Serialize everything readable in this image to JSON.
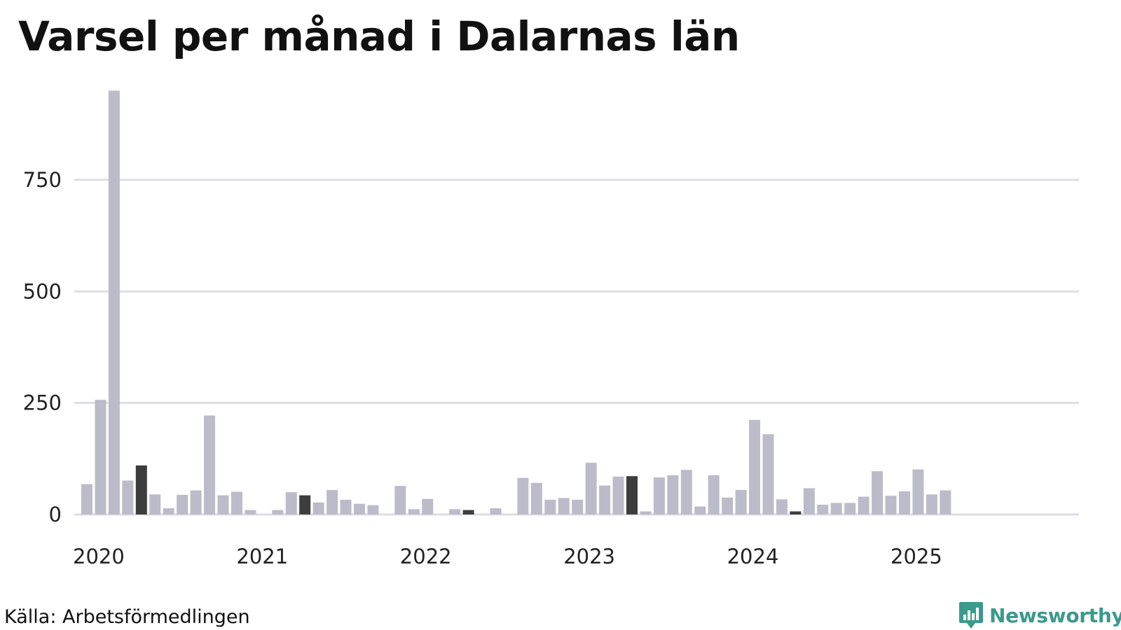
{
  "chart_data": {
    "type": "bar",
    "title": "Varsel per månad i Dalarnas län",
    "xlabel": "",
    "ylabel": "",
    "ylim": [
      0,
      950
    ],
    "y_ticks": [
      0,
      250,
      500,
      750
    ],
    "x_tick_labels": [
      "2020",
      "2021",
      "2022",
      "2023",
      "2024",
      "2025"
    ],
    "grid": true,
    "x_start": "2020-01",
    "x_end": "2025-12",
    "values": [
      68,
      257,
      950,
      76,
      110,
      45,
      14,
      44,
      54,
      222,
      43,
      51,
      10,
      0,
      10,
      50,
      43,
      27,
      55,
      33,
      24,
      21,
      0,
      64,
      12,
      35,
      0,
      12,
      10,
      0,
      14,
      0,
      82,
      71,
      33,
      37,
      33,
      116,
      65,
      85,
      86,
      7,
      83,
      88,
      100,
      18,
      88,
      38,
      55,
      212,
      180,
      34,
      7,
      59,
      22,
      26,
      26,
      40,
      97,
      42,
      52,
      101,
      45,
      54,
      null,
      null,
      null,
      null,
      null,
      null,
      null,
      null
    ],
    "highlight_months": [
      "2020-05",
      "2021-05",
      "2022-05",
      "2023-05",
      "2024-05"
    ],
    "current_month": "2025-05",
    "colors": {
      "default_bar": "#bcbbc9",
      "highlight_bar": "#3d3d3d",
      "current_bar": "#17907f",
      "grid": "#dedde6",
      "brand": "#3a9a8c"
    }
  },
  "footer": {
    "source": "Källa: Arbetsförmedlingen",
    "brand_name": "Newsworthy",
    "brand_icon": "bar-chart-badge-icon"
  }
}
